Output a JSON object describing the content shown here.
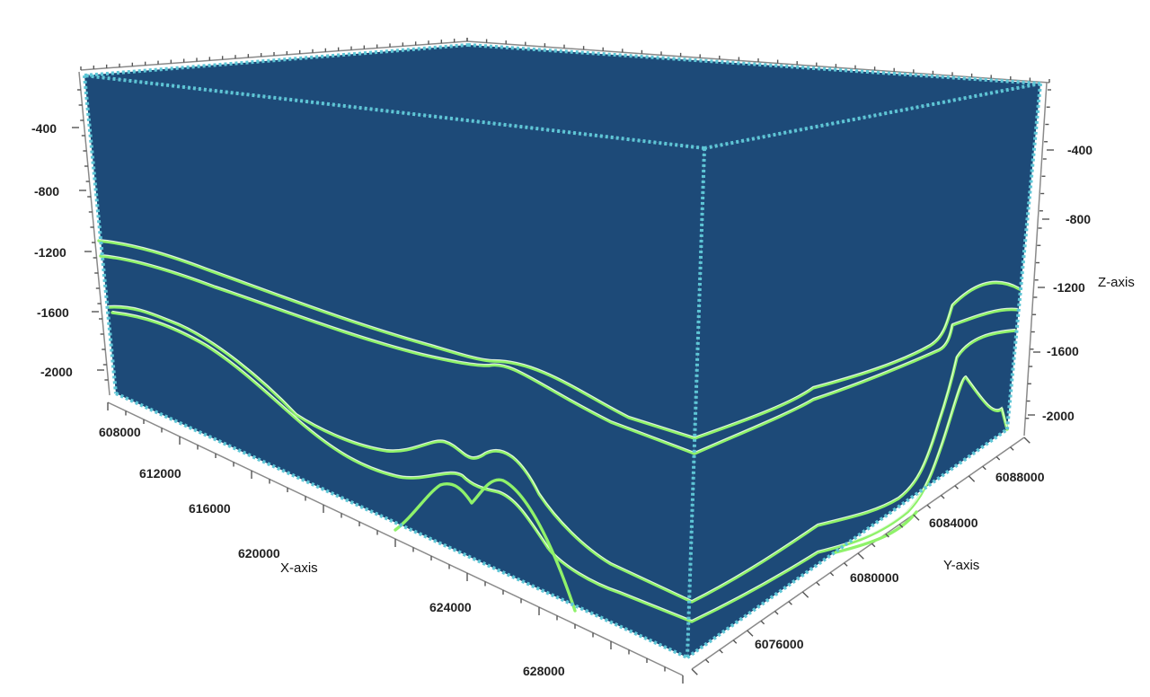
{
  "chart_data": {
    "type": "3d-block",
    "title": "",
    "xlabel": "X-axis",
    "ylabel": "Y-axis",
    "zlabel": "Z-axis",
    "x_ticks": [
      608000,
      612000,
      616000,
      620000,
      624000,
      628000
    ],
    "y_ticks": [
      6076000,
      6080000,
      6084000,
      6088000
    ],
    "z_ticks_left": [
      -400,
      -800,
      -1200,
      -1600,
      -2000
    ],
    "z_ticks_right": [
      -400,
      -800,
      -1200,
      -1600,
      -2000
    ],
    "horizons": [
      {
        "id": "h1"
      },
      {
        "id": "h2"
      },
      {
        "id": "h3"
      },
      {
        "id": "h4"
      }
    ]
  },
  "colors": {
    "block_face": "#1d4a78",
    "block_edge": "#5ec6d6",
    "horizon": "#8ff26a",
    "axis": "#444444"
  }
}
